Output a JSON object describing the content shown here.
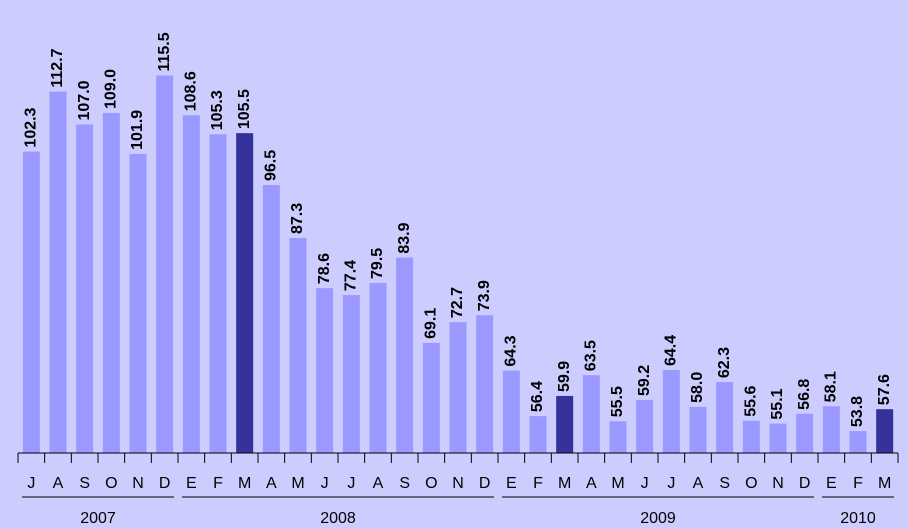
{
  "chart_data": {
    "type": "bar",
    "groups": [
      {
        "name": "2007",
        "categories": [
          "J",
          "A",
          "S",
          "O",
          "N",
          "D"
        ]
      },
      {
        "name": "2008",
        "categories": [
          "E",
          "F",
          "M",
          "A",
          "M",
          "J",
          "J",
          "A",
          "S",
          "O",
          "N",
          "D"
        ]
      },
      {
        "name": "2009",
        "categories": [
          "E",
          "F",
          "M",
          "A",
          "M",
          "J",
          "J",
          "A",
          "S",
          "O",
          "N",
          "D"
        ]
      },
      {
        "name": "2010",
        "categories": [
          "E",
          "F",
          "M"
        ]
      }
    ],
    "values": [
      102.3,
      112.7,
      107.0,
      109.0,
      101.9,
      115.5,
      108.6,
      105.3,
      105.5,
      96.5,
      87.3,
      78.6,
      77.4,
      79.5,
      83.9,
      69.1,
      72.7,
      73.9,
      64.3,
      56.4,
      59.9,
      63.5,
      55.5,
      59.2,
      64.4,
      58.0,
      62.3,
      55.6,
      55.1,
      56.8,
      58.1,
      53.8,
      57.6
    ],
    "value_labels": [
      "102.3",
      "112.7",
      "107.0",
      "109.0",
      "101.9",
      "115.5",
      "108.6",
      "105.3",
      "105.5",
      "96.5",
      "87.3",
      "78.6",
      "77.4",
      "79.5",
      "83.9",
      "69.1",
      "72.7",
      "73.9",
      "64.3",
      "56.4",
      "59.9",
      "63.5",
      "55.5",
      "59.2",
      "64.4",
      "58.0",
      "62.3",
      "55.6",
      "55.1",
      "56.8",
      "58.1",
      "53.8",
      "57.6"
    ],
    "colors": [
      "#9999ff",
      "#9999ff",
      "#9999ff",
      "#9999ff",
      "#9999ff",
      "#9999ff",
      "#9999ff",
      "#9999ff",
      "#333399",
      "#9999ff",
      "#9999ff",
      "#9999ff",
      "#9999ff",
      "#9999ff",
      "#9999ff",
      "#9999ff",
      "#9999ff",
      "#9999ff",
      "#9999ff",
      "#9999ff",
      "#333399",
      "#9999ff",
      "#9999ff",
      "#9999ff",
      "#9999ff",
      "#9999ff",
      "#9999ff",
      "#9999ff",
      "#9999ff",
      "#9999ff",
      "#9999ff",
      "#9999ff",
      "#333399"
    ],
    "ylim": [
      50,
      128.6
    ]
  }
}
